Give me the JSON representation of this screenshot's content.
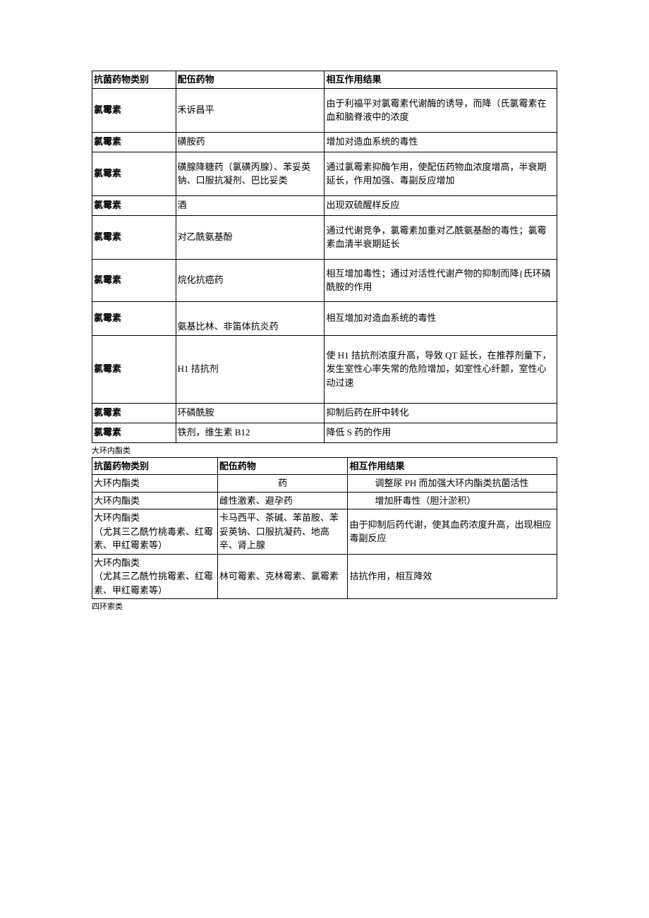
{
  "table1": {
    "headers": {
      "col1": "抗菌药物类别",
      "col2": "配伍药物",
      "col3": "相互作用结果"
    },
    "rows": [
      {
        "col1": "氯霉素",
        "col2": "禾诉昌平",
        "col3": "由于利福平对氯霉素代谢酶的诱导，而降（氏氯霉素在血和脑脊液中的浓度",
        "class": "tall"
      },
      {
        "col1": "氯霉素",
        "col2": "磺胺药",
        "col3": "增加对造血系统的毒性",
        "class": "short",
        "bold": true
      },
      {
        "col1": "氯霉素",
        "col2": "磺腺降糖药（氯磺丙腺）、苯妥英钠、口服抗凝剂、巴比妥类",
        "col3": "通过氯霉素抑酶乍用，使配伍药物血浓度增高，半衰期延长，作用加强、毒副反应增加",
        "class": "tall",
        "bold": true
      },
      {
        "col1": "氯霉素",
        "col2": "酒",
        "col3": "出现双硫醒样反应",
        "class": "short",
        "bold": true
      },
      {
        "col1": "氯霉素",
        "col2": "对乙酰氨基酚",
        "col3": "通过代谢竞争，氯霉素加重对乙酰氨基酚的毒性；氯霉素血清半衰期延长",
        "class": "tall",
        "bold": true
      },
      {
        "col1": "氯霉素",
        "col2": "烷化抗癌药",
        "col3": "相互增加毒性；通过对活性代谢产物的抑制而降{氏环磷酰胺的作用",
        "class": "med2",
        "bold": true
      },
      {
        "col1": "氯霉素",
        "col2": "氨基比林、非笛体抗炎药",
        "col3": "相互增加对造血系统的毒性",
        "class": "med",
        "bold": true,
        "col2_valign": "bottom"
      },
      {
        "col1": "氯霉素",
        "col2": "H1 拮抗剂",
        "col3": "使 H1 拮抗剂浓度升高，导致 QT 延长，在推荐剂量下，发生室性心率失常的危险增加，如室性心纤颤，室性心动过速",
        "class": "vtall",
        "bold": true
      },
      {
        "col1": "氯霉素",
        "col2": "环磷酰胺",
        "col3": "抑制后药在肝中转化",
        "class": "short",
        "bold": true
      },
      {
        "col1": "氯霉素",
        "col2": "铁剂，维生素 B12",
        "col3": "降低 S 药的作用",
        "class": "short",
        "bold": true
      }
    ]
  },
  "section1_label": "大环内酯类",
  "table2": {
    "headers": {
      "col1": "抗菌药物类别",
      "col2": "配伍药物",
      "col3": "相互作用结果"
    },
    "rows": [
      {
        "col1": "大环内酯类",
        "col2": "药",
        "col3": "调整尿 PH 而加强大环内酯类抗菌活性",
        "col2_centered": true,
        "col3_indent": true
      },
      {
        "col1": "大环内酯类",
        "col2": "雌性激素、避孕药",
        "col3": "增加肝毒性（胆汁淤积）",
        "col3_indent": true
      },
      {
        "col1": "大环内酯类\n（尤其三乙酰竹桃毒素、红霉素、甲红霉素等）",
        "col2": "卡马西平、茶碱、苯苗胺、苯妥英钠、口服抗凝药、地高辛、肾上腺",
        "col3": "由于抑制后药代谢，使其血药浓度升高，出现相应毒副反应"
      },
      {
        "col1": "大环内酯类\n（尤其三乙酰竹挑霉素、红霉素、甲红霉素等）",
        "col2": "林可霉素、克林霉素、氯霉素",
        "col3": "拮抗作用，相互降效"
      }
    ]
  },
  "section2_label": "四环索类"
}
